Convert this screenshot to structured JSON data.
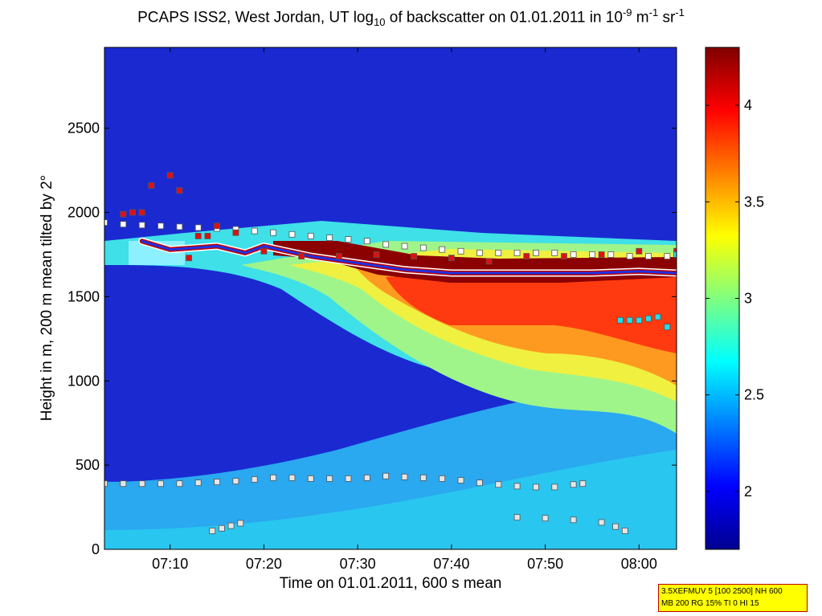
{
  "title": {
    "part1": "PCAPS ISS2, West Jordan, UT log",
    "sub1": "10",
    "part2": " of backscatter on 01.01.2011 in 10",
    "sup1": "-9",
    "part3": " m",
    "sup2": "-1",
    "part4": " sr",
    "sup3": "-1"
  },
  "info_box": {
    "line1": "3.5XEFMUV 5 [100 2500] NH 600",
    "line2": "MB 200 RG 15% TI 0 HI 15"
  },
  "chart_data": {
    "type": "heatmap",
    "title": "PCAPS ISS2, West Jordan, UT log10 of backscatter on 01.01.2011 in 10^-9 m^-1 sr^-1",
    "xlabel": "Time on 01.01.2011, 600 s mean",
    "ylabel": "Height in m, 200 m mean tilted by 2°",
    "xlim_minutes": [
      423,
      484
    ],
    "ylim": [
      0,
      2980
    ],
    "x_ticks": [
      {
        "label": "07:10",
        "minute": 430
      },
      {
        "label": "07:20",
        "minute": 440
      },
      {
        "label": "07:30",
        "minute": 450
      },
      {
        "label": "07:40",
        "minute": 460
      },
      {
        "label": "07:50",
        "minute": 470
      },
      {
        "label": "08:00",
        "minute": 480
      }
    ],
    "y_ticks": [
      0,
      500,
      1000,
      1500,
      2000,
      2500
    ],
    "colorbar": {
      "clim": [
        1.7,
        4.3
      ],
      "ticks": [
        2,
        2.5,
        3,
        3.5,
        4
      ],
      "tick_labels": [
        "2",
        "2.5",
        "3",
        "3.5",
        "4"
      ],
      "colormap": "jet"
    },
    "aerosol_layer_top": {
      "minutes": [
        423,
        430,
        440,
        450,
        460,
        470,
        480,
        484
      ],
      "heights": [
        1900,
        1880,
        1850,
        1790,
        1730,
        1720,
        1720,
        1720
      ]
    },
    "cloud_base_layer": {
      "minutes": [
        427,
        430,
        435,
        438,
        440,
        445,
        450,
        455,
        460,
        465,
        470,
        475,
        480,
        484
      ],
      "heights": [
        1830,
        1780,
        1800,
        1760,
        1800,
        1740,
        1700,
        1660,
        1640,
        1640,
        1640,
        1640,
        1650,
        1640
      ]
    },
    "markers": {
      "upper_layer": {
        "minutes": [
          423,
          425,
          427,
          429,
          431,
          433,
          435,
          437,
          439,
          441,
          443,
          445,
          447,
          449,
          451,
          453,
          455,
          457,
          459,
          461,
          463,
          465,
          467,
          469,
          471,
          473,
          475,
          477,
          479,
          481,
          483
        ],
        "heights": [
          1940,
          1930,
          1925,
          1920,
          1915,
          1910,
          1905,
          1900,
          1890,
          1880,
          1870,
          1860,
          1850,
          1840,
          1830,
          1810,
          1800,
          1790,
          1780,
          1770,
          1760,
          1760,
          1760,
          1760,
          1760,
          1750,
          1750,
          1750,
          1740,
          1740,
          1740
        ]
      },
      "lower_layer": {
        "minutes": [
          423,
          425,
          427,
          429,
          431,
          433,
          435,
          437,
          439,
          441,
          443,
          445,
          447,
          449,
          451,
          453,
          455,
          457,
          459,
          461,
          463,
          465,
          467,
          469,
          471,
          473,
          474
        ],
        "heights": [
          390,
          390,
          390,
          390,
          390,
          395,
          400,
          405,
          415,
          425,
          425,
          420,
          420,
          420,
          425,
          435,
          430,
          425,
          420,
          410,
          395,
          385,
          375,
          370,
          370,
          385,
          390
        ]
      },
      "morning_bottom": {
        "minutes": [
          434.5,
          435.5,
          436.5,
          437.5
        ],
        "heights": [
          110,
          125,
          140,
          155
        ]
      },
      "late_bottom": {
        "minutes": [
          467,
          470,
          473,
          476,
          477.5,
          478.5
        ],
        "heights": [
          190,
          185,
          175,
          160,
          135,
          110
        ]
      },
      "red_squares": {
        "minutes": [
          425,
          426,
          427,
          428,
          430,
          431,
          432,
          433,
          434,
          435,
          437,
          440,
          444,
          448,
          452,
          456,
          460,
          464,
          468,
          472,
          476,
          480,
          484
        ],
        "heights": [
          1990,
          2000,
          2000,
          2160,
          2220,
          2130,
          1730,
          1860,
          1860,
          1920,
          1880,
          1770,
          1740,
          1740,
          1750,
          1740,
          1730,
          1710,
          1740,
          1740,
          1750,
          1770,
          1770
        ]
      },
      "cyan_squares": {
        "minutes": [
          478,
          479,
          480,
          481,
          482,
          483,
          484
        ],
        "heights": [
          1360,
          1360,
          1360,
          1370,
          1380,
          1320,
          1750
        ]
      }
    }
  }
}
